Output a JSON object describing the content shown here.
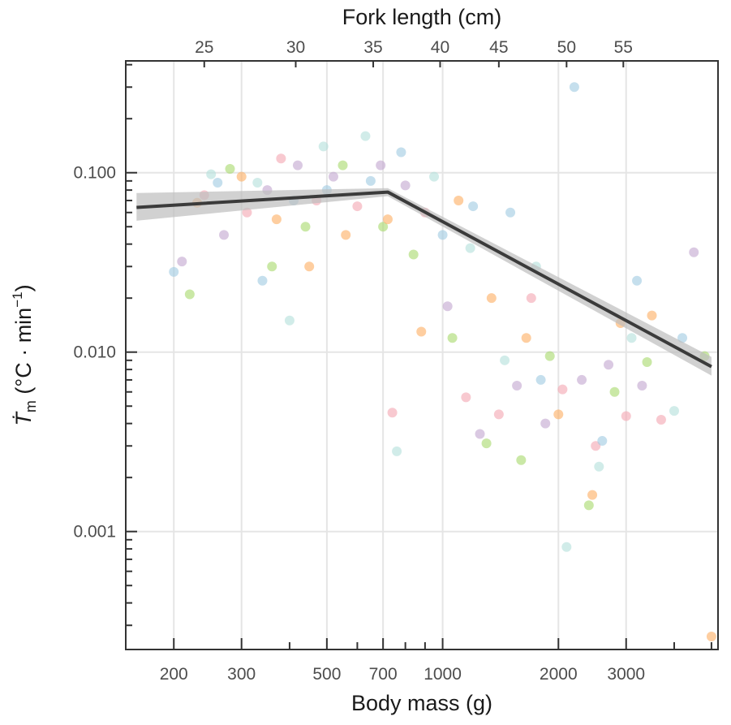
{
  "chart_data": {
    "type": "scatter",
    "title": "",
    "xlabel": "Body mass (g)",
    "x2label": "Fork length (cm)",
    "ylabel_main": "Ṫ",
    "ylabel_sub": "m",
    "ylabel_units_open": " (°C · min",
    "ylabel_units_sup": "−1",
    "ylabel_units_close": ")",
    "xscale": "log",
    "yscale": "log",
    "xlim": [
      150,
      5200
    ],
    "ylim": [
      0.00022,
      0.42
    ],
    "grid": true,
    "legend": "none",
    "x_ticks": [
      {
        "value": 200,
        "label": "200"
      },
      {
        "value": 300,
        "label": "300"
      },
      {
        "value": 500,
        "label": "500"
      },
      {
        "value": 700,
        "label": "700"
      },
      {
        "value": 1000,
        "label": "1000"
      },
      {
        "value": 2000,
        "label": "2000"
      },
      {
        "value": 3000,
        "label": "3000"
      }
    ],
    "x_minor_ticks": [
      400,
      600,
      800,
      900,
      4000,
      5000
    ],
    "x2_ticks": [
      {
        "value": 240,
        "label": "25"
      },
      {
        "value": 415,
        "label": "30"
      },
      {
        "value": 660,
        "label": "35"
      },
      {
        "value": 985,
        "label": "40"
      },
      {
        "value": 1400,
        "label": "45"
      },
      {
        "value": 2100,
        "label": "50"
      },
      {
        "value": 2950,
        "label": "55"
      }
    ],
    "y_ticks": [
      {
        "value": 0.1,
        "label": "0.100"
      },
      {
        "value": 0.01,
        "label": "0.010"
      },
      {
        "value": 0.001,
        "label": "0.001"
      }
    ],
    "fit_line": {
      "color": "#3b3b3b",
      "band_color": "#bdbdbd",
      "points": [
        {
          "x": 160,
          "y": 0.064,
          "lower": 0.054,
          "upper": 0.077
        },
        {
          "x": 720,
          "y": 0.078,
          "lower": 0.074,
          "upper": 0.082
        },
        {
          "x": 5000,
          "y": 0.0083,
          "lower": 0.0074,
          "upper": 0.0094
        }
      ]
    },
    "point_colors": [
      "#9ecae1",
      "#c2a5cf",
      "#a6d96a",
      "#fdae61",
      "#f4a5b0",
      "#b2dfdb"
    ],
    "series": [
      {
        "name": "",
        "points": [
          [
            200,
            0.028
          ],
          [
            210,
            0.032
          ],
          [
            220,
            0.021
          ],
          [
            230,
            0.068
          ],
          [
            240,
            0.075
          ],
          [
            250,
            0.098
          ],
          [
            260,
            0.088
          ],
          [
            270,
            0.045
          ],
          [
            280,
            0.105
          ],
          [
            300,
            0.095
          ],
          [
            310,
            0.06
          ],
          [
            330,
            0.088
          ],
          [
            340,
            0.025
          ],
          [
            350,
            0.08
          ],
          [
            360,
            0.03
          ],
          [
            370,
            0.055
          ],
          [
            380,
            0.12
          ],
          [
            400,
            0.015
          ],
          [
            410,
            0.07
          ],
          [
            420,
            0.11
          ],
          [
            440,
            0.05
          ],
          [
            450,
            0.03
          ],
          [
            470,
            0.07
          ],
          [
            490,
            0.14
          ],
          [
            500,
            0.08
          ],
          [
            520,
            0.095
          ],
          [
            550,
            0.11
          ],
          [
            560,
            0.045
          ],
          [
            600,
            0.065
          ],
          [
            630,
            0.16
          ],
          [
            650,
            0.09
          ],
          [
            690,
            0.11
          ],
          [
            700,
            0.05
          ],
          [
            720,
            0.055
          ],
          [
            740,
            0.0046
          ],
          [
            760,
            0.0028
          ],
          [
            780,
            0.13
          ],
          [
            800,
            0.085
          ],
          [
            840,
            0.035
          ],
          [
            880,
            0.013
          ],
          [
            900,
            0.06
          ],
          [
            950,
            0.095
          ],
          [
            1000,
            0.045
          ],
          [
            1030,
            0.018
          ],
          [
            1060,
            0.012
          ],
          [
            1100,
            0.07
          ],
          [
            1150,
            0.0056
          ],
          [
            1180,
            0.038
          ],
          [
            1200,
            0.065
          ],
          [
            1250,
            0.0035
          ],
          [
            1300,
            0.0031
          ],
          [
            1340,
            0.02
          ],
          [
            1400,
            0.0045
          ],
          [
            1450,
            0.009
          ],
          [
            1500,
            0.06
          ],
          [
            1560,
            0.0065
          ],
          [
            1600,
            0.0025
          ],
          [
            1650,
            0.012
          ],
          [
            1700,
            0.02
          ],
          [
            1750,
            0.03
          ],
          [
            1800,
            0.007
          ],
          [
            1850,
            0.004
          ],
          [
            1900,
            0.0095
          ],
          [
            2000,
            0.0045
          ],
          [
            2050,
            0.0062
          ],
          [
            2100,
            0.00082
          ],
          [
            2200,
            0.3
          ],
          [
            2300,
            0.007
          ],
          [
            2400,
            0.0014
          ],
          [
            2450,
            0.0016
          ],
          [
            2500,
            0.003
          ],
          [
            2550,
            0.0023
          ],
          [
            2600,
            0.0032
          ],
          [
            2700,
            0.0085
          ],
          [
            2800,
            0.006
          ],
          [
            2900,
            0.0145
          ],
          [
            3000,
            0.0044
          ],
          [
            3100,
            0.012
          ],
          [
            3200,
            0.025
          ],
          [
            3300,
            0.0065
          ],
          [
            3400,
            0.0088
          ],
          [
            3500,
            0.016
          ],
          [
            3700,
            0.0042
          ],
          [
            4000,
            0.0047
          ],
          [
            4200,
            0.012
          ],
          [
            4500,
            0.036
          ],
          [
            4800,
            0.0095
          ],
          [
            5000,
            0.00026
          ]
        ]
      }
    ]
  }
}
